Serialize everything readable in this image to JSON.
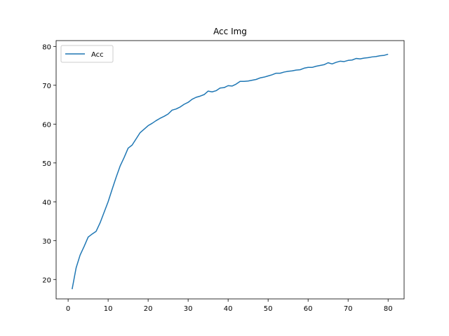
{
  "chart_data": {
    "type": "line",
    "title": "Acc Img",
    "xlabel": "",
    "ylabel": "",
    "xlim": [
      -3,
      84
    ],
    "ylim": [
      15,
      81.5
    ],
    "xticks": [
      0,
      10,
      20,
      30,
      40,
      50,
      60,
      70,
      80
    ],
    "yticks": [
      20,
      30,
      40,
      50,
      60,
      70,
      80
    ],
    "grid": false,
    "legend": {
      "position": "top-left",
      "entries": [
        "Acc"
      ]
    },
    "colors": {
      "series": "#1f77b4"
    },
    "x": [
      1,
      2,
      3,
      4,
      5,
      6,
      7,
      8,
      9,
      10,
      11,
      12,
      13,
      14,
      15,
      16,
      17,
      18,
      19,
      20,
      21,
      22,
      23,
      24,
      25,
      26,
      27,
      28,
      29,
      30,
      31,
      32,
      33,
      34,
      35,
      36,
      37,
      38,
      39,
      40,
      41,
      42,
      43,
      44,
      45,
      46,
      47,
      48,
      49,
      50,
      51,
      52,
      53,
      54,
      55,
      56,
      57,
      58,
      59,
      60,
      61,
      62,
      63,
      64,
      65,
      66,
      67,
      68,
      69,
      70,
      71,
      72,
      73,
      74,
      75,
      76,
      77,
      78,
      79,
      80
    ],
    "series": [
      {
        "name": "Acc",
        "values": [
          17.5,
          23.0,
          26.3,
          28.5,
          30.9,
          31.7,
          32.4,
          34.6,
          37.3,
          40.0,
          43.2,
          46.3,
          49.2,
          51.4,
          53.8,
          54.6,
          56.2,
          57.8,
          58.7,
          59.6,
          60.2,
          60.9,
          61.5,
          62.0,
          62.6,
          63.6,
          63.9,
          64.4,
          65.1,
          65.6,
          66.4,
          66.9,
          67.2,
          67.6,
          68.5,
          68.3,
          68.6,
          69.3,
          69.4,
          69.9,
          69.8,
          70.3,
          71.0,
          71.0,
          71.1,
          71.3,
          71.5,
          71.9,
          72.1,
          72.4,
          72.7,
          73.1,
          73.1,
          73.4,
          73.6,
          73.7,
          73.9,
          74.0,
          74.4,
          74.6,
          74.6,
          74.9,
          75.1,
          75.3,
          75.8,
          75.5,
          75.9,
          76.2,
          76.1,
          76.4,
          76.5,
          76.9,
          76.8,
          77.0,
          77.1,
          77.3,
          77.4,
          77.6,
          77.7,
          78.0
        ]
      }
    ]
  }
}
